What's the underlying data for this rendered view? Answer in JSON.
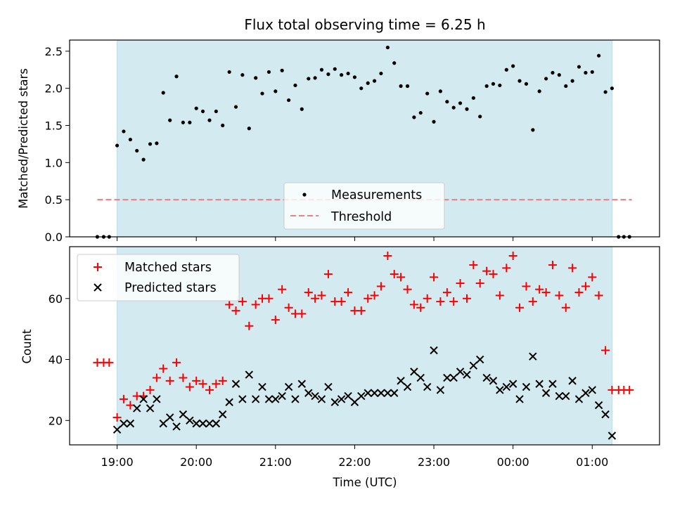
{
  "chart_data": {
    "type": "scatter",
    "title": "Flux total observing time = 6.25 h",
    "x_axis": {
      "label": "Time (UTC)",
      "tick_labels": [
        "19:00",
        "20:00",
        "21:00",
        "22:00",
        "23:00",
        "00:00",
        "01:00"
      ],
      "tick_values_hours": [
        0,
        1,
        2,
        3,
        4,
        5,
        6
      ],
      "range_hours": [
        -0.6,
        6.85
      ]
    },
    "observing_window_hours": [
      0,
      6.25
    ],
    "colors": {
      "window": "#d3eaf1",
      "window_edge": "#b9dde8",
      "matched": "#ff0000",
      "predicted": "#000000",
      "threshold": "#f08080",
      "measurements": "#000000"
    },
    "panels": [
      {
        "ylabel": "Matched/Predicted stars",
        "ylim": [
          0,
          2.65
        ],
        "y_ticks": [
          0.0,
          0.5,
          1.0,
          1.5,
          2.0,
          2.5
        ],
        "y_tick_labels": [
          "0.0",
          "0.5",
          "1.0",
          "1.5",
          "2.0",
          "2.5"
        ],
        "legend": {
          "location": "lower-center",
          "entries": [
            "Measurements",
            "Threshold"
          ]
        },
        "threshold": {
          "name": "Threshold",
          "value": 0.5,
          "x_range_hours": [
            -0.25,
            6.5
          ],
          "style": "dashed"
        },
        "series": [
          {
            "name": "Measurements",
            "marker": "dot",
            "x_hours": [
              -0.25,
              -0.17,
              -0.1,
              0.0,
              0.083,
              0.167,
              0.25,
              0.333,
              0.417,
              0.5,
              0.583,
              0.667,
              0.75,
              0.833,
              0.917,
              1.0,
              1.083,
              1.167,
              1.25,
              1.333,
              1.417,
              1.5,
              1.583,
              1.667,
              1.75,
              1.833,
              1.917,
              2.0,
              2.083,
              2.167,
              2.25,
              2.333,
              2.417,
              2.5,
              2.583,
              2.667,
              2.75,
              2.833,
              2.917,
              3.0,
              3.083,
              3.167,
              3.25,
              3.333,
              3.417,
              3.5,
              3.583,
              3.667,
              3.75,
              3.833,
              3.917,
              4.0,
              4.083,
              4.167,
              4.25,
              4.333,
              4.417,
              4.5,
              4.583,
              4.667,
              4.75,
              4.833,
              4.917,
              5.0,
              5.083,
              5.167,
              5.25,
              5.333,
              5.417,
              5.5,
              5.583,
              5.667,
              5.75,
              5.833,
              5.917,
              6.0,
              6.083,
              6.167,
              6.25,
              6.333,
              6.4,
              6.47
            ],
            "values": [
              0.0,
              0.0,
              0.0,
              1.23,
              1.42,
              1.31,
              1.16,
              1.04,
              1.25,
              1.26,
              1.94,
              1.57,
              2.16,
              1.54,
              1.54,
              1.73,
              1.69,
              1.57,
              1.69,
              1.5,
              2.22,
              1.75,
              2.18,
              1.46,
              2.14,
              1.93,
              2.22,
              1.96,
              2.24,
              1.84,
              2.04,
              1.72,
              2.13,
              2.14,
              2.25,
              2.19,
              2.26,
              2.18,
              2.2,
              2.15,
              2.0,
              2.07,
              2.1,
              2.2,
              2.55,
              2.34,
              2.03,
              2.03,
              1.61,
              1.67,
              1.93,
              1.55,
              1.96,
              1.82,
              1.74,
              1.8,
              1.72,
              1.87,
              1.62,
              2.03,
              2.06,
              2.04,
              2.25,
              2.3,
              2.1,
              2.06,
              1.44,
              1.96,
              2.13,
              2.21,
              2.18,
              2.03,
              2.1,
              2.29,
              2.21,
              2.22,
              2.44,
              1.95,
              2.0,
              0.0,
              0.0,
              0.0
            ]
          }
        ]
      },
      {
        "ylabel": "Count",
        "ylim": [
          12,
          77
        ],
        "y_ticks": [
          20,
          40,
          60
        ],
        "y_tick_labels": [
          "20",
          "40",
          "60"
        ],
        "legend": {
          "location": "top-left",
          "entries": [
            "Matched stars",
            "Predicted stars"
          ]
        },
        "series": [
          {
            "name": "Matched stars",
            "marker": "plus",
            "x_hours": [
              -0.25,
              -0.17,
              -0.1,
              0.0,
              0.083,
              0.167,
              0.25,
              0.333,
              0.417,
              0.5,
              0.583,
              0.667,
              0.75,
              0.833,
              0.917,
              1.0,
              1.083,
              1.167,
              1.25,
              1.333,
              1.417,
              1.5,
              1.583,
              1.667,
              1.75,
              1.833,
              1.917,
              2.0,
              2.083,
              2.167,
              2.25,
              2.333,
              2.417,
              2.5,
              2.583,
              2.667,
              2.75,
              2.833,
              2.917,
              3.0,
              3.083,
              3.167,
              3.25,
              3.333,
              3.417,
              3.5,
              3.583,
              3.667,
              3.75,
              3.833,
              3.917,
              4.0,
              4.083,
              4.167,
              4.25,
              4.333,
              4.417,
              4.5,
              4.583,
              4.667,
              4.75,
              4.833,
              4.917,
              5.0,
              5.083,
              5.167,
              5.25,
              5.333,
              5.417,
              5.5,
              5.583,
              5.667,
              5.75,
              5.833,
              5.917,
              6.0,
              6.083,
              6.167,
              6.25,
              6.333,
              6.4,
              6.47
            ],
            "values": [
              39,
              39,
              39,
              21,
              27,
              25,
              28,
              28,
              30,
              34,
              37,
              33,
              39,
              34,
              31,
              33,
              32,
              30,
              32,
              33,
              58,
              56,
              59,
              51,
              58,
              60,
              60,
              53,
              63,
              57,
              55,
              55,
              62,
              60,
              61,
              68,
              59,
              59,
              62,
              56,
              56,
              60,
              61,
              64,
              74,
              68,
              67,
              63,
              58,
              57,
              60,
              67,
              59,
              62,
              59,
              65,
              60,
              71,
              65,
              69,
              68,
              61,
              70,
              74,
              57,
              64,
              59,
              63,
              62,
              71,
              61,
              57,
              70,
              62,
              64,
              67,
              61,
              43,
              30,
              30,
              30,
              30
            ]
          },
          {
            "name": "Predicted stars",
            "marker": "x",
            "x_hours": [
              0.0,
              0.083,
              0.167,
              0.25,
              0.333,
              0.417,
              0.5,
              0.583,
              0.667,
              0.75,
              0.833,
              0.917,
              1.0,
              1.083,
              1.167,
              1.25,
              1.333,
              1.417,
              1.5,
              1.583,
              1.667,
              1.75,
              1.833,
              1.917,
              2.0,
              2.083,
              2.167,
              2.25,
              2.333,
              2.417,
              2.5,
              2.583,
              2.667,
              2.75,
              2.833,
              2.917,
              3.0,
              3.083,
              3.167,
              3.25,
              3.333,
              3.417,
              3.5,
              3.583,
              3.667,
              3.75,
              3.833,
              3.917,
              4.0,
              4.083,
              4.167,
              4.25,
              4.333,
              4.417,
              4.5,
              4.583,
              4.667,
              4.75,
              4.833,
              4.917,
              5.0,
              5.083,
              5.167,
              5.25,
              5.333,
              5.417,
              5.5,
              5.583,
              5.667,
              5.75,
              5.833,
              5.917,
              6.0,
              6.083,
              6.167,
              6.25
            ],
            "values": [
              17,
              19,
              19,
              24,
              27,
              24,
              27,
              19,
              21,
              18,
              22,
              20,
              19,
              19,
              19,
              19,
              22,
              26,
              32,
              27,
              35,
              27,
              31,
              27,
              27,
              28,
              31,
              27,
              32,
              29,
              28,
              27,
              31,
              26,
              27,
              28,
              26,
              28,
              29,
              29,
              29,
              29,
              29,
              33,
              31,
              36,
              34,
              31,
              43,
              30,
              34,
              34,
              36,
              35,
              38,
              40,
              34,
              33,
              30,
              31,
              32,
              27,
              31,
              41,
              32,
              29,
              32,
              28,
              28,
              33,
              27,
              29,
              30,
              25,
              22,
              15
            ]
          }
        ]
      }
    ]
  }
}
